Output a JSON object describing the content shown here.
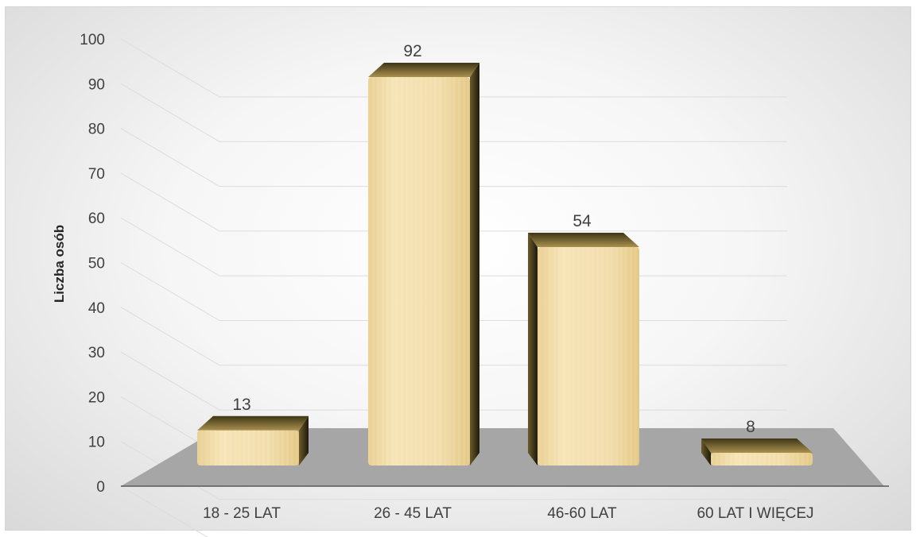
{
  "chart_data": {
    "type": "bar",
    "categories": [
      "18 - 25 LAT",
      "26 - 45 LAT",
      "46-60 LAT",
      "60 LAT I WIĘCEJ"
    ],
    "values": [
      13,
      92,
      54,
      8
    ],
    "ylabel": "Liczba osób",
    "xlabel": "",
    "ylim": [
      0,
      100
    ],
    "yticks": [
      0,
      10,
      20,
      30,
      40,
      50,
      60,
      70,
      80,
      90,
      100
    ],
    "grid": true,
    "legend": "none",
    "bar_color": "#f0d9a0",
    "bar_shade_color": "#4a3f1e",
    "floor_color": "#a6a6a6"
  }
}
